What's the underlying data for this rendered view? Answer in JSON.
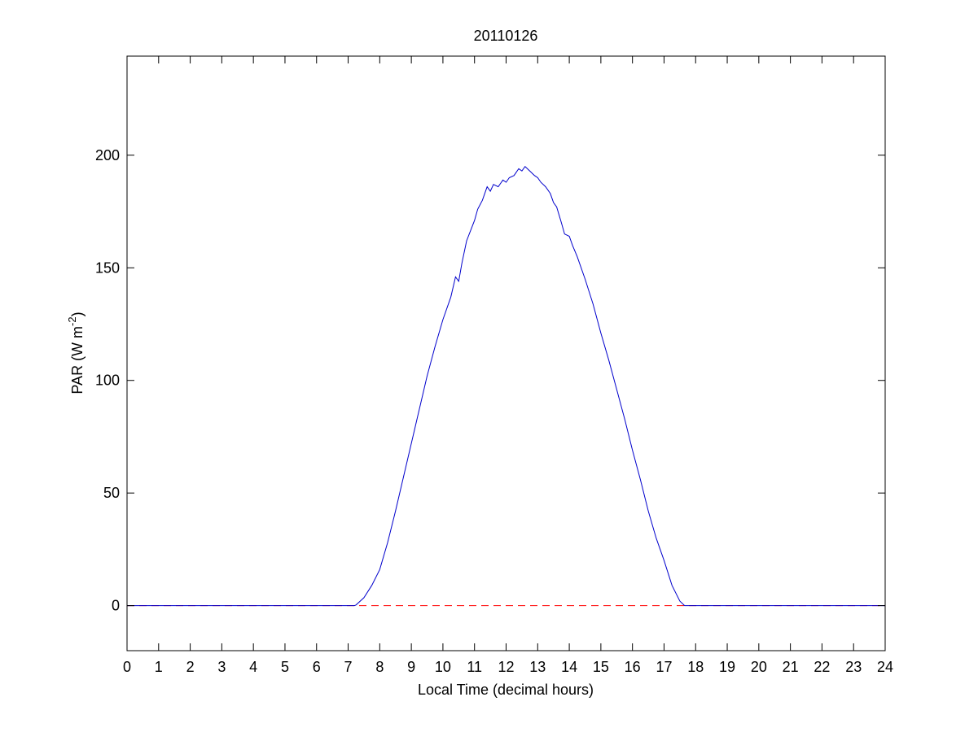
{
  "chart_data": {
    "type": "line",
    "title": "20110126",
    "xlabel": "Local Time (decimal hours)",
    "ylabel": "PAR (W m",
    "ylabel_superscript": "-2",
    "ylabel_suffix": ")",
    "xlim": [
      0,
      24
    ],
    "ylim": [
      -20,
      244
    ],
    "xticks": [
      0,
      1,
      2,
      3,
      4,
      5,
      6,
      7,
      8,
      9,
      10,
      11,
      12,
      13,
      14,
      15,
      16,
      17,
      18,
      19,
      20,
      21,
      22,
      23,
      24
    ],
    "yticks": [
      0,
      50,
      100,
      150,
      200
    ],
    "grid": false,
    "colors": {
      "series": "#0000cc",
      "reference": "#ff0000",
      "axes": "#000000"
    },
    "series": [
      {
        "style": "solid",
        "x": [
          0,
          7.2,
          7.25,
          7.5,
          7.75,
          8,
          8.25,
          8.5,
          8.75,
          9,
          9.25,
          9.5,
          9.75,
          10,
          10.25,
          10.4,
          10.5,
          10.6,
          10.75,
          11,
          11.1,
          11.25,
          11.4,
          11.5,
          11.6,
          11.75,
          11.9,
          12,
          12.1,
          12.25,
          12.4,
          12.5,
          12.6,
          12.75,
          12.9,
          13,
          13.1,
          13.25,
          13.4,
          13.5,
          13.6,
          13.75,
          13.85,
          14,
          14.1,
          14.25,
          14.5,
          14.75,
          15,
          15.25,
          15.5,
          15.75,
          16,
          16.25,
          16.5,
          16.75,
          17,
          17.25,
          17.5,
          17.65,
          24
        ],
        "y": [
          0,
          0,
          0.3,
          3.5,
          9,
          16,
          28,
          42,
          57,
          72,
          87,
          102,
          115,
          127,
          137,
          146,
          144,
          152,
          162,
          171,
          176,
          180,
          186,
          184,
          187,
          186,
          189,
          188,
          190,
          191,
          194,
          193,
          195,
          193,
          191,
          190,
          188,
          186,
          183,
          179,
          177,
          170,
          165,
          164,
          160,
          155,
          145,
          134,
          121,
          109,
          96,
          83,
          69,
          56,
          42,
          30,
          20,
          9,
          2,
          0,
          0
        ]
      },
      {
        "style": "dashed",
        "x": [
          0,
          24
        ],
        "y": [
          0,
          0
        ]
      }
    ]
  }
}
